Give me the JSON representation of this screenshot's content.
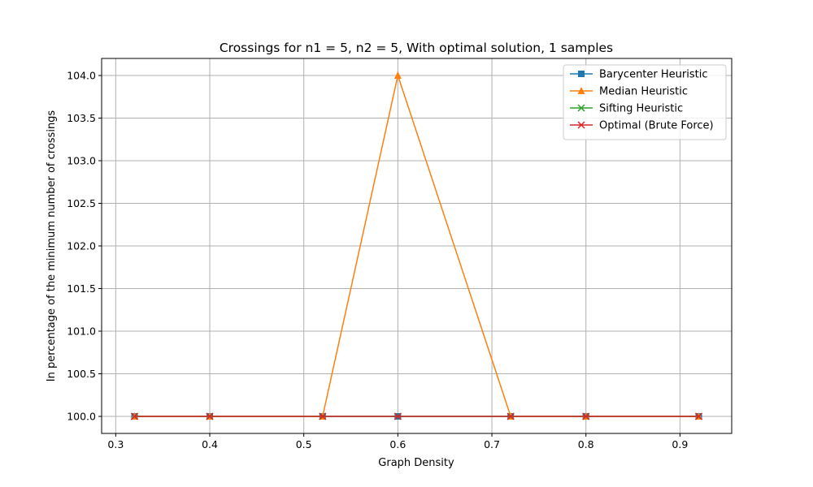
{
  "chart_data": {
    "type": "line",
    "title": "Crossings for n1 = 5, n2 = 5, With optimal solution, 1 samples",
    "xlabel": "Graph Density",
    "ylabel": "In percentage of the minimum number of crossings",
    "xlim": [
      0.285,
      0.955
    ],
    "ylim": [
      99.8,
      104.2
    ],
    "xticks": [
      0.3,
      0.4,
      0.5,
      0.6,
      0.7,
      0.8,
      0.9
    ],
    "xtick_labels": [
      "0.3",
      "0.4",
      "0.5",
      "0.6",
      "0.7",
      "0.8",
      "0.9"
    ],
    "yticks": [
      100.0,
      100.5,
      101.0,
      101.5,
      102.0,
      102.5,
      103.0,
      103.5,
      104.0
    ],
    "ytick_labels": [
      "100.0",
      "100.5",
      "101.0",
      "101.5",
      "102.0",
      "102.5",
      "103.0",
      "103.5",
      "104.0"
    ],
    "grid": true,
    "legend_position": "top-right",
    "x": [
      0.32,
      0.4,
      0.52,
      0.6,
      0.72,
      0.8,
      0.92
    ],
    "series": [
      {
        "name": "Barycenter Heuristic",
        "color": "#1f77b4",
        "marker": "square",
        "values": [
          100,
          100,
          100,
          100,
          100,
          100,
          100
        ]
      },
      {
        "name": "Median Heuristic",
        "color": "#ff7f0e",
        "marker": "triangle",
        "values": [
          100,
          100,
          100,
          104,
          100,
          100,
          100
        ]
      },
      {
        "name": "Sifting Heuristic",
        "color": "#2ca02c",
        "marker": "x",
        "values": [
          100,
          100,
          100,
          100,
          100,
          100,
          100
        ]
      },
      {
        "name": "Optimal (Brute Force)",
        "color": "#d62728",
        "marker": "x",
        "values": [
          100,
          100,
          100,
          100,
          100,
          100,
          100
        ]
      }
    ]
  }
}
